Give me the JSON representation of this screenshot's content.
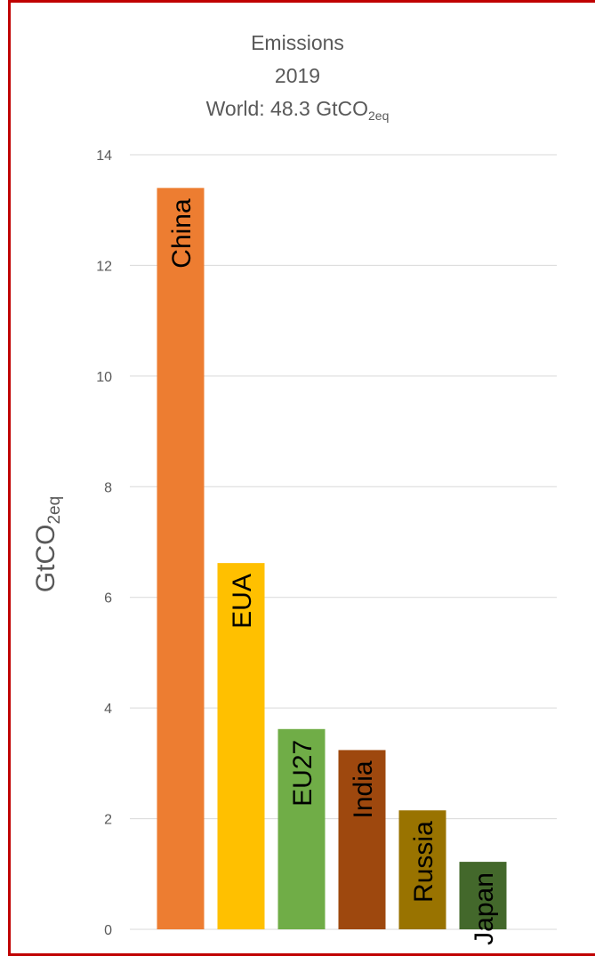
{
  "chart_data": {
    "type": "bar",
    "title": {
      "line1": "Emissions",
      "line2": "2019",
      "line3_prefix": "World: 48.3 GtCO",
      "line3_subscript": "2eq"
    },
    "ylabel": {
      "main": "GtCO",
      "subscript": "2eq"
    },
    "xlabel": "",
    "ylim": [
      0,
      14
    ],
    "yticks": [
      0,
      2,
      4,
      6,
      8,
      10,
      12,
      14
    ],
    "grid": true,
    "categories": [
      "China",
      "EUA",
      "EU27",
      "India",
      "Russia",
      "Japan"
    ],
    "values": [
      13.4,
      6.62,
      3.62,
      3.24,
      2.15,
      1.22
    ],
    "colors": [
      "#ed7d31",
      "#ffc000",
      "#70ad47",
      "#9e480e",
      "#997300",
      "#43682b"
    ],
    "grid_color": "#d9d9d9",
    "axis_text_color": "#595959"
  }
}
